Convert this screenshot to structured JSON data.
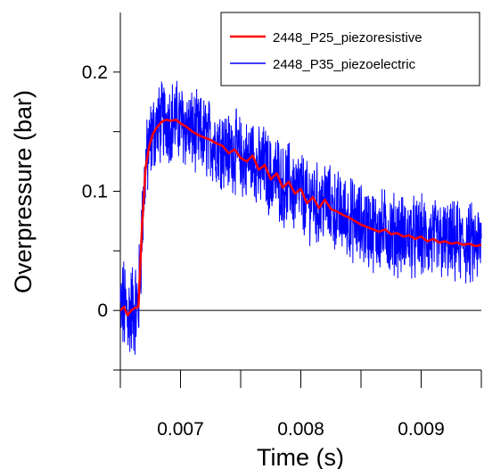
{
  "chart_data": {
    "type": "line",
    "title": "",
    "xlabel": "Time (s)",
    "ylabel": "Overpressure (bar)",
    "xlim": [
      0.0065,
      0.0095
    ],
    "ylim": [
      -0.05,
      0.25
    ],
    "xticks": [
      0.0065,
      0.007,
      0.0075,
      0.008,
      0.0085,
      0.009,
      0.0095
    ],
    "xtick_labels": [
      "0.007",
      "0.008",
      "0.009"
    ],
    "xtick_label_values": [
      0.007,
      0.008,
      0.009
    ],
    "yticks": [
      -0.05,
      0,
      0.05,
      0.1,
      0.15,
      0.2
    ],
    "ytick_labels": [
      "0",
      "0.1",
      "0.2"
    ],
    "ytick_label_values": [
      0,
      0.1,
      0.2
    ],
    "zero_line": true,
    "grid": false,
    "legend_position": "top-right",
    "series": [
      {
        "name": "2448_P25_piezoresistive",
        "color": "#ff0000",
        "x": [
          0.0065,
          0.00653,
          0.00656,
          0.00659,
          0.00662,
          0.00665,
          0.00668,
          0.00671,
          0.00674,
          0.00677,
          0.0068,
          0.00684,
          0.00688,
          0.00692,
          0.00696,
          0.007,
          0.00705,
          0.0071,
          0.00715,
          0.0072,
          0.00725,
          0.0073,
          0.00735,
          0.0074,
          0.00745,
          0.0075,
          0.00755,
          0.0076,
          0.00765,
          0.0077,
          0.00775,
          0.0078,
          0.00785,
          0.0079,
          0.00795,
          0.008,
          0.00805,
          0.0081,
          0.00815,
          0.0082,
          0.00825,
          0.0083,
          0.00835,
          0.0084,
          0.00845,
          0.0085,
          0.00855,
          0.0086,
          0.00865,
          0.0087,
          0.00875,
          0.0088,
          0.00885,
          0.0089,
          0.00895,
          0.009,
          0.00905,
          0.0091,
          0.00915,
          0.0092,
          0.00925,
          0.0093,
          0.00935,
          0.0094,
          0.00945,
          0.0095
        ],
        "y": [
          0.0,
          0.003,
          -0.004,
          0.0,
          0.002,
          0.003,
          0.07,
          0.12,
          0.138,
          0.148,
          0.153,
          0.158,
          0.16,
          0.159,
          0.16,
          0.157,
          0.154,
          0.15,
          0.147,
          0.145,
          0.143,
          0.14,
          0.138,
          0.132,
          0.135,
          0.128,
          0.125,
          0.13,
          0.118,
          0.122,
          0.11,
          0.115,
          0.103,
          0.108,
          0.098,
          0.102,
          0.09,
          0.095,
          0.086,
          0.093,
          0.085,
          0.083,
          0.08,
          0.078,
          0.075,
          0.072,
          0.07,
          0.068,
          0.066,
          0.068,
          0.064,
          0.065,
          0.062,
          0.063,
          0.06,
          0.062,
          0.058,
          0.06,
          0.057,
          0.058,
          0.056,
          0.057,
          0.055,
          0.056,
          0.054,
          0.055
        ]
      },
      {
        "name": "2448_P35_piezoelectric",
        "color": "#0000ff",
        "x": [
          0.0065,
          0.00653,
          0.00656,
          0.00659,
          0.00662,
          0.00665,
          0.00668,
          0.00671,
          0.00674,
          0.00677,
          0.0068,
          0.00684,
          0.00688,
          0.00692,
          0.00696,
          0.007,
          0.00705,
          0.0071,
          0.00715,
          0.0072,
          0.00725,
          0.0073,
          0.00735,
          0.0074,
          0.00745,
          0.0075,
          0.00755,
          0.0076,
          0.00765,
          0.0077,
          0.00775,
          0.0078,
          0.00785,
          0.0079,
          0.00795,
          0.008,
          0.00805,
          0.0081,
          0.00815,
          0.0082,
          0.00825,
          0.0083,
          0.00835,
          0.0084,
          0.00845,
          0.0085,
          0.00855,
          0.0086,
          0.00865,
          0.0087,
          0.00875,
          0.0088,
          0.00885,
          0.0089,
          0.00895,
          0.009,
          0.00905,
          0.0091,
          0.00915,
          0.0092,
          0.00925,
          0.0093,
          0.00935,
          0.0094,
          0.00945,
          0.0095
        ],
        "y": [
          0.0,
          0.003,
          -0.004,
          0.0,
          0.002,
          0.003,
          0.07,
          0.12,
          0.138,
          0.148,
          0.153,
          0.158,
          0.16,
          0.159,
          0.16,
          0.157,
          0.154,
          0.15,
          0.147,
          0.145,
          0.143,
          0.14,
          0.138,
          0.132,
          0.135,
          0.128,
          0.125,
          0.13,
          0.118,
          0.122,
          0.11,
          0.115,
          0.103,
          0.108,
          0.098,
          0.102,
          0.09,
          0.095,
          0.086,
          0.093,
          0.085,
          0.083,
          0.08,
          0.078,
          0.075,
          0.072,
          0.07,
          0.068,
          0.066,
          0.068,
          0.064,
          0.065,
          0.062,
          0.063,
          0.06,
          0.062,
          0.058,
          0.06,
          0.057,
          0.058,
          0.056,
          0.057,
          0.055,
          0.056,
          0.054,
          0.055
        ],
        "noise_amplitude": 0.03
      }
    ]
  }
}
